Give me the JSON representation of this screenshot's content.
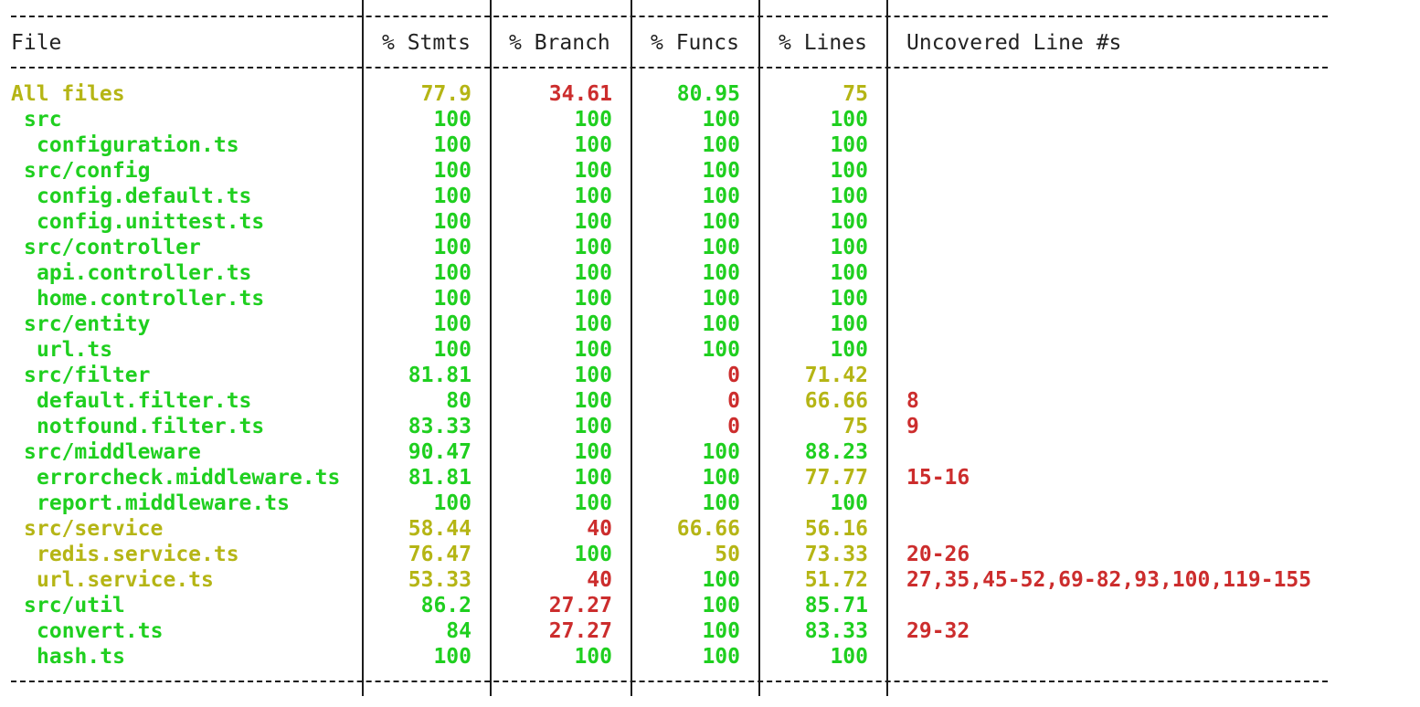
{
  "colors": {
    "green": "#1fcf1f",
    "yellow": "#b5b515",
    "red": "#cc2d2d",
    "text": "#222222",
    "background": "#ffffff"
  },
  "header": {
    "file": "File",
    "stmts": "% Stmts",
    "branch": "% Branch",
    "funcs": "% Funcs",
    "lines": "% Lines",
    "uncovered": "Uncovered Line #s"
  },
  "rows": [
    {
      "file": "All files",
      "level": 0,
      "file_color": "yellow",
      "stmts": "77.9",
      "stmts_color": "yellow",
      "branch": "34.61",
      "branch_color": "red",
      "funcs": "80.95",
      "funcs_color": "green",
      "lines": "75",
      "lines_color": "yellow",
      "uncovered": ""
    },
    {
      "file": "src",
      "level": 1,
      "file_color": "green",
      "stmts": "100",
      "stmts_color": "green",
      "branch": "100",
      "branch_color": "green",
      "funcs": "100",
      "funcs_color": "green",
      "lines": "100",
      "lines_color": "green",
      "uncovered": ""
    },
    {
      "file": "configuration.ts",
      "level": 2,
      "file_color": "green",
      "stmts": "100",
      "stmts_color": "green",
      "branch": "100",
      "branch_color": "green",
      "funcs": "100",
      "funcs_color": "green",
      "lines": "100",
      "lines_color": "green",
      "uncovered": ""
    },
    {
      "file": "src/config",
      "level": 1,
      "file_color": "green",
      "stmts": "100",
      "stmts_color": "green",
      "branch": "100",
      "branch_color": "green",
      "funcs": "100",
      "funcs_color": "green",
      "lines": "100",
      "lines_color": "green",
      "uncovered": ""
    },
    {
      "file": "config.default.ts",
      "level": 2,
      "file_color": "green",
      "stmts": "100",
      "stmts_color": "green",
      "branch": "100",
      "branch_color": "green",
      "funcs": "100",
      "funcs_color": "green",
      "lines": "100",
      "lines_color": "green",
      "uncovered": ""
    },
    {
      "file": "config.unittest.ts",
      "level": 2,
      "file_color": "green",
      "stmts": "100",
      "stmts_color": "green",
      "branch": "100",
      "branch_color": "green",
      "funcs": "100",
      "funcs_color": "green",
      "lines": "100",
      "lines_color": "green",
      "uncovered": ""
    },
    {
      "file": "src/controller",
      "level": 1,
      "file_color": "green",
      "stmts": "100",
      "stmts_color": "green",
      "branch": "100",
      "branch_color": "green",
      "funcs": "100",
      "funcs_color": "green",
      "lines": "100",
      "lines_color": "green",
      "uncovered": ""
    },
    {
      "file": "api.controller.ts",
      "level": 2,
      "file_color": "green",
      "stmts": "100",
      "stmts_color": "green",
      "branch": "100",
      "branch_color": "green",
      "funcs": "100",
      "funcs_color": "green",
      "lines": "100",
      "lines_color": "green",
      "uncovered": ""
    },
    {
      "file": "home.controller.ts",
      "level": 2,
      "file_color": "green",
      "stmts": "100",
      "stmts_color": "green",
      "branch": "100",
      "branch_color": "green",
      "funcs": "100",
      "funcs_color": "green",
      "lines": "100",
      "lines_color": "green",
      "uncovered": ""
    },
    {
      "file": "src/entity",
      "level": 1,
      "file_color": "green",
      "stmts": "100",
      "stmts_color": "green",
      "branch": "100",
      "branch_color": "green",
      "funcs": "100",
      "funcs_color": "green",
      "lines": "100",
      "lines_color": "green",
      "uncovered": ""
    },
    {
      "file": "url.ts",
      "level": 2,
      "file_color": "green",
      "stmts": "100",
      "stmts_color": "green",
      "branch": "100",
      "branch_color": "green",
      "funcs": "100",
      "funcs_color": "green",
      "lines": "100",
      "lines_color": "green",
      "uncovered": ""
    },
    {
      "file": "src/filter",
      "level": 1,
      "file_color": "green",
      "stmts": "81.81",
      "stmts_color": "green",
      "branch": "100",
      "branch_color": "green",
      "funcs": "0",
      "funcs_color": "red",
      "lines": "71.42",
      "lines_color": "yellow",
      "uncovered": ""
    },
    {
      "file": "default.filter.ts",
      "level": 2,
      "file_color": "green",
      "stmts": "80",
      "stmts_color": "green",
      "branch": "100",
      "branch_color": "green",
      "funcs": "0",
      "funcs_color": "red",
      "lines": "66.66",
      "lines_color": "yellow",
      "uncovered": "8"
    },
    {
      "file": "notfound.filter.ts",
      "level": 2,
      "file_color": "green",
      "stmts": "83.33",
      "stmts_color": "green",
      "branch": "100",
      "branch_color": "green",
      "funcs": "0",
      "funcs_color": "red",
      "lines": "75",
      "lines_color": "yellow",
      "uncovered": "9"
    },
    {
      "file": "src/middleware",
      "level": 1,
      "file_color": "green",
      "stmts": "90.47",
      "stmts_color": "green",
      "branch": "100",
      "branch_color": "green",
      "funcs": "100",
      "funcs_color": "green",
      "lines": "88.23",
      "lines_color": "green",
      "uncovered": ""
    },
    {
      "file": "errorcheck.middleware.ts",
      "level": 2,
      "file_color": "green",
      "stmts": "81.81",
      "stmts_color": "green",
      "branch": "100",
      "branch_color": "green",
      "funcs": "100",
      "funcs_color": "green",
      "lines": "77.77",
      "lines_color": "yellow",
      "uncovered": "15-16"
    },
    {
      "file": "report.middleware.ts",
      "level": 2,
      "file_color": "green",
      "stmts": "100",
      "stmts_color": "green",
      "branch": "100",
      "branch_color": "green",
      "funcs": "100",
      "funcs_color": "green",
      "lines": "100",
      "lines_color": "green",
      "uncovered": ""
    },
    {
      "file": "src/service",
      "level": 1,
      "file_color": "yellow",
      "stmts": "58.44",
      "stmts_color": "yellow",
      "branch": "40",
      "branch_color": "red",
      "funcs": "66.66",
      "funcs_color": "yellow",
      "lines": "56.16",
      "lines_color": "yellow",
      "uncovered": ""
    },
    {
      "file": "redis.service.ts",
      "level": 2,
      "file_color": "yellow",
      "stmts": "76.47",
      "stmts_color": "yellow",
      "branch": "100",
      "branch_color": "green",
      "funcs": "50",
      "funcs_color": "yellow",
      "lines": "73.33",
      "lines_color": "yellow",
      "uncovered": "20-26"
    },
    {
      "file": "url.service.ts",
      "level": 2,
      "file_color": "yellow",
      "stmts": "53.33",
      "stmts_color": "yellow",
      "branch": "40",
      "branch_color": "red",
      "funcs": "100",
      "funcs_color": "green",
      "lines": "51.72",
      "lines_color": "yellow",
      "uncovered": "27,35,45-52,69-82,93,100,119-155"
    },
    {
      "file": "src/util",
      "level": 1,
      "file_color": "green",
      "stmts": "86.2",
      "stmts_color": "green",
      "branch": "27.27",
      "branch_color": "red",
      "funcs": "100",
      "funcs_color": "green",
      "lines": "85.71",
      "lines_color": "green",
      "uncovered": ""
    },
    {
      "file": "convert.ts",
      "level": 2,
      "file_color": "green",
      "stmts": "84",
      "stmts_color": "green",
      "branch": "27.27",
      "branch_color": "red",
      "funcs": "100",
      "funcs_color": "green",
      "lines": "83.33",
      "lines_color": "green",
      "uncovered": "29-32"
    },
    {
      "file": "hash.ts",
      "level": 2,
      "file_color": "green",
      "stmts": "100",
      "stmts_color": "green",
      "branch": "100",
      "branch_color": "green",
      "funcs": "100",
      "funcs_color": "green",
      "lines": "100",
      "lines_color": "green",
      "uncovered": ""
    }
  ]
}
